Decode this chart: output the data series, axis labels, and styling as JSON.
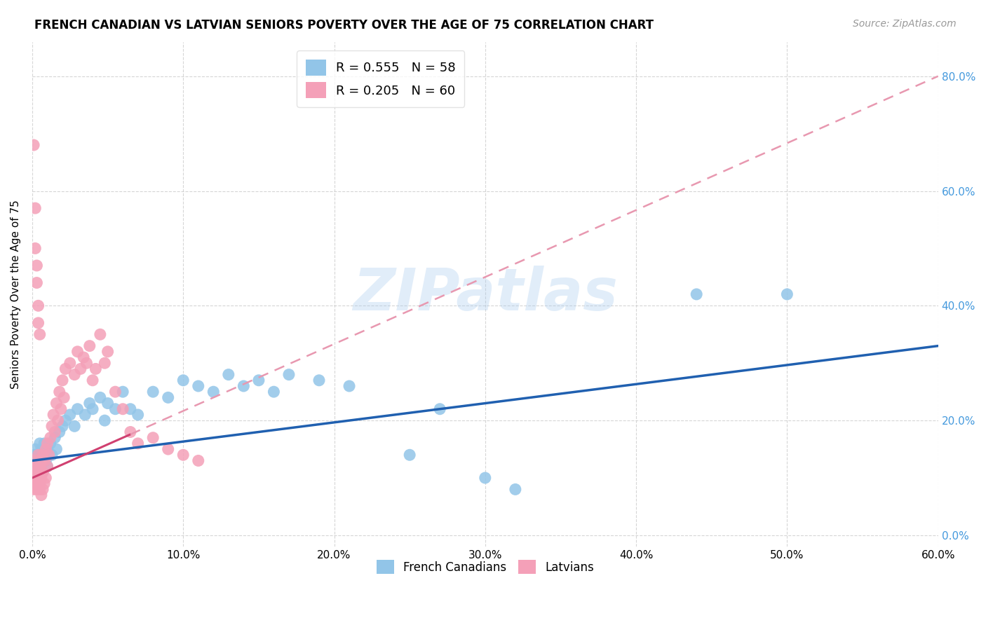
{
  "title": "FRENCH CANADIAN VS LATVIAN SENIORS POVERTY OVER THE AGE OF 75 CORRELATION CHART",
  "source": "Source: ZipAtlas.com",
  "ylabel": "Seniors Poverty Over the Age of 75",
  "french_R": 0.555,
  "french_N": 58,
  "latvian_R": 0.205,
  "latvian_N": 60,
  "french_color": "#92C5E8",
  "latvian_color": "#F4A0B8",
  "french_line_color": "#2060B0",
  "latvian_line_color": "#D04070",
  "latvian_dash_color": "#E898B0",
  "background_color": "#FFFFFF",
  "grid_color": "#CCCCCC",
  "xlim": [
    0.0,
    0.6
  ],
  "ylim": [
    -0.02,
    0.86
  ],
  "xticks": [
    0.0,
    0.1,
    0.2,
    0.3,
    0.4,
    0.5,
    0.6
  ],
  "yticks": [
    0.0,
    0.2,
    0.4,
    0.6,
    0.8
  ],
  "french_canadians_x": [
    0.001,
    0.001,
    0.002,
    0.002,
    0.003,
    0.003,
    0.004,
    0.004,
    0.005,
    0.005,
    0.005,
    0.006,
    0.006,
    0.007,
    0.007,
    0.008,
    0.008,
    0.009,
    0.01,
    0.01,
    0.012,
    0.013,
    0.015,
    0.016,
    0.018,
    0.02,
    0.022,
    0.025,
    0.028,
    0.03,
    0.035,
    0.038,
    0.04,
    0.045,
    0.048,
    0.05,
    0.055,
    0.06,
    0.065,
    0.07,
    0.08,
    0.09,
    0.1,
    0.11,
    0.12,
    0.13,
    0.14,
    0.15,
    0.16,
    0.17,
    0.19,
    0.21,
    0.25,
    0.27,
    0.3,
    0.32,
    0.44,
    0.5
  ],
  "french_canadians_y": [
    0.13,
    0.14,
    0.12,
    0.15,
    0.13,
    0.11,
    0.14,
    0.12,
    0.16,
    0.13,
    0.12,
    0.14,
    0.15,
    0.13,
    0.11,
    0.14,
    0.16,
    0.13,
    0.15,
    0.12,
    0.16,
    0.14,
    0.17,
    0.15,
    0.18,
    0.19,
    0.2,
    0.21,
    0.19,
    0.22,
    0.21,
    0.23,
    0.22,
    0.24,
    0.2,
    0.23,
    0.22,
    0.25,
    0.22,
    0.21,
    0.25,
    0.24,
    0.27,
    0.26,
    0.25,
    0.28,
    0.26,
    0.27,
    0.25,
    0.28,
    0.27,
    0.26,
    0.14,
    0.22,
    0.1,
    0.08,
    0.42,
    0.42
  ],
  "latvians_x": [
    0.001,
    0.001,
    0.001,
    0.002,
    0.002,
    0.002,
    0.003,
    0.003,
    0.003,
    0.004,
    0.004,
    0.004,
    0.005,
    0.005,
    0.005,
    0.005,
    0.006,
    0.006,
    0.006,
    0.007,
    0.007,
    0.007,
    0.008,
    0.008,
    0.009,
    0.009,
    0.01,
    0.01,
    0.011,
    0.012,
    0.013,
    0.014,
    0.015,
    0.016,
    0.017,
    0.018,
    0.019,
    0.02,
    0.021,
    0.022,
    0.025,
    0.028,
    0.03,
    0.032,
    0.034,
    0.036,
    0.038,
    0.04,
    0.042,
    0.045,
    0.048,
    0.05,
    0.055,
    0.06,
    0.065,
    0.07,
    0.08,
    0.09,
    0.1,
    0.11
  ],
  "latvians_y": [
    0.1,
    0.12,
    0.08,
    0.11,
    0.09,
    0.13,
    0.1,
    0.12,
    0.08,
    0.11,
    0.09,
    0.14,
    0.1,
    0.12,
    0.08,
    0.09,
    0.13,
    0.1,
    0.07,
    0.14,
    0.11,
    0.08,
    0.13,
    0.09,
    0.15,
    0.1,
    0.16,
    0.12,
    0.14,
    0.17,
    0.19,
    0.21,
    0.18,
    0.23,
    0.2,
    0.25,
    0.22,
    0.27,
    0.24,
    0.29,
    0.3,
    0.28,
    0.32,
    0.29,
    0.31,
    0.3,
    0.33,
    0.27,
    0.29,
    0.35,
    0.3,
    0.32,
    0.25,
    0.22,
    0.18,
    0.16,
    0.17,
    0.15,
    0.14,
    0.13
  ],
  "latvians_high_x": [
    0.001,
    0.002,
    0.002,
    0.003,
    0.003,
    0.004,
    0.004,
    0.005
  ],
  "latvians_high_y": [
    0.68,
    0.57,
    0.5,
    0.47,
    0.44,
    0.4,
    0.37,
    0.35
  ]
}
